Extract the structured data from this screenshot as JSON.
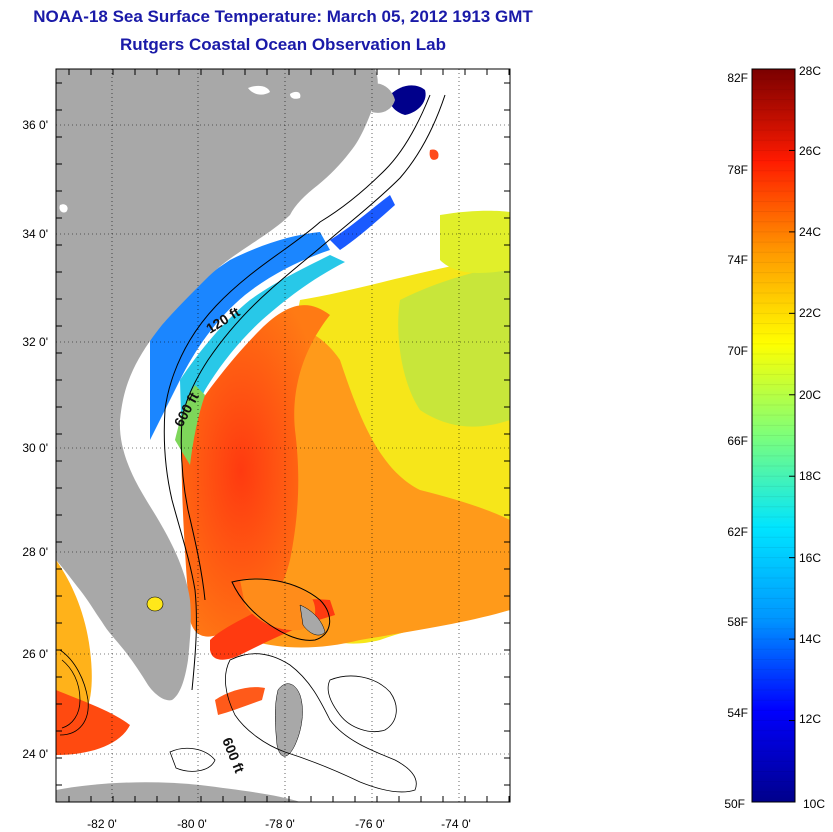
{
  "title": {
    "line1": "NOAA-18 Sea Surface Temperature:  March 05, 2012 1913 GMT",
    "line2": "Rutgers Coastal Ocean Observation Lab"
  },
  "map": {
    "lat_ticks": [
      "36 0'",
      "34 0'",
      "32 0'",
      "30 0'",
      "28 0'",
      "26 0'",
      "24 0'"
    ],
    "lon_ticks": [
      "-82 0'",
      "-80 0'",
      "-78 0'",
      "-76 0'",
      "-74 0'"
    ],
    "contour_labels": [
      "120 ft",
      "600 ft",
      "600 ft"
    ],
    "colors": {
      "land": "#a8a8a8",
      "cloud": "#ffffff"
    }
  },
  "colorbar": {
    "fahrenheit": [
      "82F",
      "78F",
      "74F",
      "70F",
      "66F",
      "62F",
      "58F",
      "54F",
      "50F"
    ],
    "celsius": [
      "28C",
      "26C",
      "24C",
      "22C",
      "20C",
      "18C",
      "16C",
      "14C",
      "12C",
      "10C"
    ],
    "range_c": [
      10,
      28
    ],
    "stops": [
      "#00008b",
      "#0000ff",
      "#0096ff",
      "#00e5ff",
      "#7dff7a",
      "#ffff00",
      "#ff9900",
      "#ff1a00",
      "#7a0000"
    ]
  }
}
